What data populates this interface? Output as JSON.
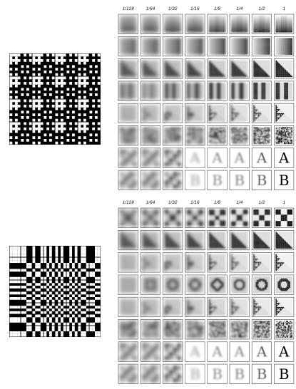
{
  "column_labels": [
    "1/128",
    "1/64",
    "1/32",
    "1/16",
    "1/8",
    "1/4",
    "1/2",
    "1"
  ],
  "panels": [
    {
      "id": "top",
      "basis": "walsh",
      "rows": [
        {
          "pattern": "vgrad",
          "glyph": ""
        },
        {
          "pattern": "hgrad",
          "glyph": ""
        },
        {
          "pattern": "diag",
          "glyph": ""
        },
        {
          "pattern": "vstripes",
          "glyph": ""
        },
        {
          "pattern": "tri",
          "glyph": ""
        },
        {
          "pattern": "noise",
          "glyph": ""
        },
        {
          "pattern": "glyph",
          "glyph": "A"
        },
        {
          "pattern": "glyph",
          "glyph": "B"
        }
      ]
    },
    {
      "id": "bottom",
      "basis": "dct",
      "rows": [
        {
          "pattern": "checker",
          "glyph": ""
        },
        {
          "pattern": "diag",
          "glyph": ""
        },
        {
          "pattern": "tri",
          "glyph": ""
        },
        {
          "pattern": "ring",
          "glyph": ""
        },
        {
          "pattern": "tri",
          "glyph": ""
        },
        {
          "pattern": "noise",
          "glyph": ""
        },
        {
          "pattern": "glyph",
          "glyph": "A"
        },
        {
          "pattern": "glyph",
          "glyph": "B"
        }
      ]
    }
  ]
}
